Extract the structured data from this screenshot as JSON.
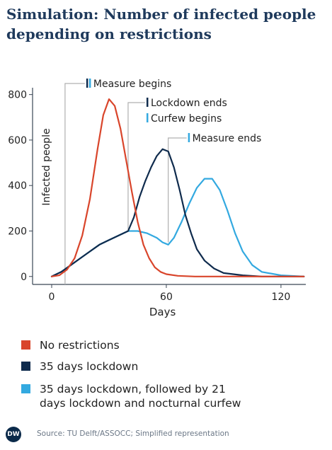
{
  "title": "Simulation: Number of infected people depending on restrictions",
  "source": "Source: TU Delft/ASSOCC; Simplified representation",
  "logo": "DW",
  "colors": {
    "no_restrictions": "#d9452b",
    "lockdown": "#0f2b4d",
    "lockdown_curfew": "#33a9e0",
    "marker_lines": "#b0b0b0",
    "axis": "#3a4655"
  },
  "chart_data": {
    "type": "line",
    "title": "Simulation: Number of infected people depending on restrictions",
    "xlabel": "Days",
    "ylabel": "Infected people",
    "xlim": [
      -10,
      133
    ],
    "ylim": [
      -35,
      830
    ],
    "xticks": [
      0,
      60,
      120
    ],
    "yticks": [
      0,
      200,
      400,
      600,
      800
    ],
    "grid": false,
    "legend_position": "bottom",
    "series": [
      {
        "name": "No restrictions",
        "color": "#d9452b",
        "x": [
          0,
          4,
          8,
          12,
          16,
          20,
          24,
          27,
          30,
          33,
          36,
          39,
          42,
          45,
          48,
          51,
          54,
          57,
          60,
          66,
          75,
          90,
          110,
          132
        ],
        "y": [
          0,
          5,
          30,
          80,
          180,
          340,
          560,
          710,
          780,
          750,
          650,
          510,
          370,
          240,
          140,
          80,
          40,
          20,
          10,
          3,
          0,
          0,
          0,
          0
        ]
      },
      {
        "name": "35 days lockdown",
        "color": "#0f2b4d",
        "x": [
          0,
          5,
          10,
          15,
          20,
          25,
          30,
          35,
          40,
          43,
          46,
          49,
          52,
          55,
          58,
          61,
          64,
          67,
          70,
          73,
          76,
          80,
          85,
          90,
          100,
          110,
          120,
          132
        ],
        "y": [
          0,
          20,
          50,
          80,
          110,
          140,
          160,
          180,
          200,
          260,
          350,
          420,
          480,
          530,
          560,
          550,
          480,
          380,
          270,
          190,
          120,
          70,
          35,
          15,
          5,
          0,
          0,
          0
        ]
      },
      {
        "name": "35 days lockdown, followed by 21 days lockdown and nocturnal curfew",
        "color": "#33a9e0",
        "x": [
          0,
          5,
          10,
          15,
          20,
          25,
          30,
          35,
          40,
          45,
          50,
          55,
          58,
          61,
          64,
          68,
          72,
          76,
          80,
          84,
          88,
          92,
          96,
          100,
          105,
          110,
          120,
          132
        ],
        "y": [
          0,
          20,
          50,
          80,
          110,
          140,
          160,
          180,
          200,
          200,
          190,
          170,
          150,
          140,
          170,
          240,
          320,
          390,
          430,
          430,
          380,
          290,
          190,
          110,
          50,
          20,
          5,
          0
        ]
      }
    ],
    "annotations": [
      {
        "label": "Measure begins",
        "x": 7,
        "marker": "double"
      },
      {
        "label": "Lockdown ends",
        "x": 40,
        "marker": "dark"
      },
      {
        "label": "Curfew begins",
        "x": 40,
        "marker": "light"
      },
      {
        "label": "Measure ends",
        "x": 61,
        "marker": "light"
      }
    ]
  }
}
